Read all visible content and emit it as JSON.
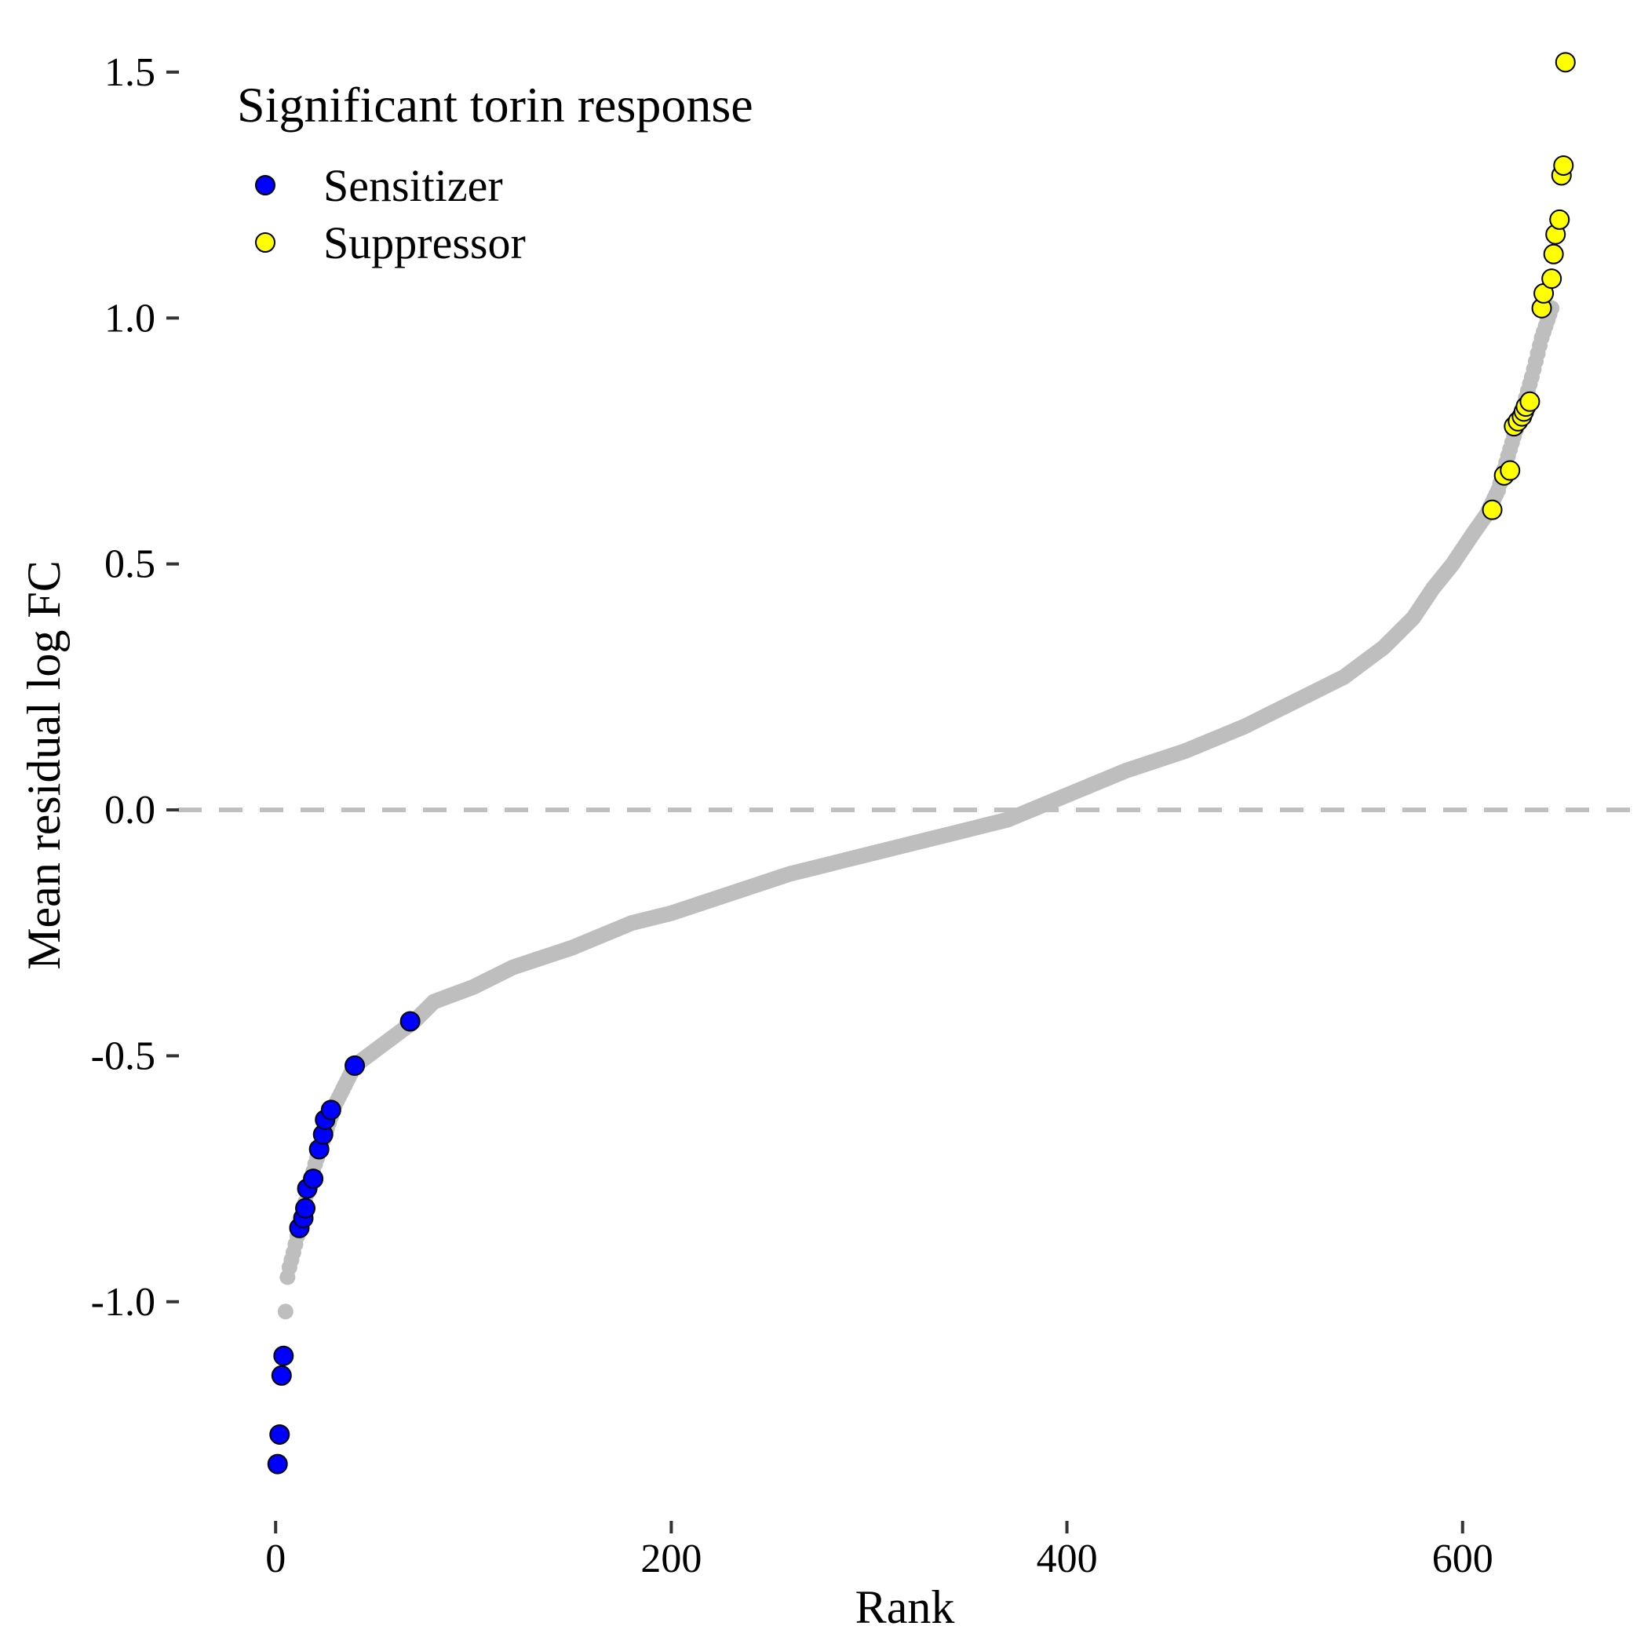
{
  "chart_data": {
    "type": "scatter",
    "xlabel": "Rank",
    "ylabel": "Mean residual log FC",
    "xlim": [
      -35,
      685
    ],
    "ylim": [
      -1.42,
      1.57
    ],
    "x_ticks": [
      0,
      200,
      400,
      600
    ],
    "y_ticks": [
      -1.0,
      -0.5,
      0.0,
      0.5,
      1.0,
      1.5
    ],
    "x_tick_labels": [
      "0",
      "200",
      "400",
      "600"
    ],
    "y_tick_labels": [
      "-1.0",
      "-0.5",
      "0.0",
      "0.5",
      "1.0",
      "1.5"
    ],
    "reference_line": {
      "y": 0.0,
      "style": "dashed",
      "color": "#bebebe"
    },
    "grid": false,
    "legend": {
      "title": "Significant torin response",
      "position": "top-left",
      "entries": [
        {
          "label": "Sensitizer",
          "color": "#0000ff"
        },
        {
          "label": "Suppressor",
          "color": "#ffff00"
        }
      ]
    },
    "background_color": "#bebebe",
    "background_curve": [
      [
        5,
        -1.02
      ],
      [
        6,
        -0.95
      ],
      [
        7,
        -0.93
      ],
      [
        9,
        -0.9
      ],
      [
        12,
        -0.85
      ],
      [
        16,
        -0.78
      ],
      [
        20,
        -0.72
      ],
      [
        25,
        -0.66
      ],
      [
        30,
        -0.6
      ],
      [
        35,
        -0.56
      ],
      [
        40,
        -0.52
      ],
      [
        50,
        -0.49
      ],
      [
        60,
        -0.46
      ],
      [
        70,
        -0.43
      ],
      [
        80,
        -0.39
      ],
      [
        100,
        -0.36
      ],
      [
        120,
        -0.32
      ],
      [
        150,
        -0.28
      ],
      [
        180,
        -0.23
      ],
      [
        200,
        -0.21
      ],
      [
        230,
        -0.17
      ],
      [
        260,
        -0.13
      ],
      [
        290,
        -0.1
      ],
      [
        320,
        -0.07
      ],
      [
        350,
        -0.04
      ],
      [
        370,
        -0.02
      ],
      [
        400,
        0.03
      ],
      [
        430,
        0.08
      ],
      [
        460,
        0.12
      ],
      [
        490,
        0.17
      ],
      [
        520,
        0.23
      ],
      [
        540,
        0.27
      ],
      [
        560,
        0.33
      ],
      [
        575,
        0.39
      ],
      [
        585,
        0.45
      ],
      [
        595,
        0.5
      ],
      [
        605,
        0.56
      ],
      [
        612,
        0.6
      ],
      [
        618,
        0.65
      ],
      [
        623,
        0.72
      ],
      [
        626,
        0.76
      ],
      [
        630,
        0.81
      ],
      [
        635,
        0.88
      ],
      [
        640,
        0.96
      ],
      [
        645,
        1.02
      ]
    ],
    "series": [
      {
        "name": "Sensitizer",
        "color": "#0000ff",
        "points": [
          [
            1,
            -1.33
          ],
          [
            2,
            -1.27
          ],
          [
            3,
            -1.15
          ],
          [
            4,
            -1.11
          ],
          [
            12,
            -0.85
          ],
          [
            14,
            -0.83
          ],
          [
            15,
            -0.81
          ],
          [
            16,
            -0.77
          ],
          [
            19,
            -0.75
          ],
          [
            22,
            -0.69
          ],
          [
            24,
            -0.66
          ],
          [
            25,
            -0.63
          ],
          [
            28,
            -0.61
          ],
          [
            40,
            -0.52
          ],
          [
            68,
            -0.43
          ]
        ]
      },
      {
        "name": "Suppressor",
        "color": "#ffff00",
        "points": [
          [
            615,
            0.61
          ],
          [
            621,
            0.68
          ],
          [
            624,
            0.69
          ],
          [
            626,
            0.78
          ],
          [
            628,
            0.79
          ],
          [
            630,
            0.8
          ],
          [
            631,
            0.81
          ],
          [
            632,
            0.82
          ],
          [
            634,
            0.83
          ],
          [
            640,
            1.02
          ],
          [
            641,
            1.05
          ],
          [
            645,
            1.08
          ],
          [
            646,
            1.13
          ],
          [
            647,
            1.17
          ],
          [
            649,
            1.2
          ],
          [
            650,
            1.29
          ],
          [
            651,
            1.31
          ],
          [
            652,
            1.52
          ]
        ]
      }
    ]
  }
}
